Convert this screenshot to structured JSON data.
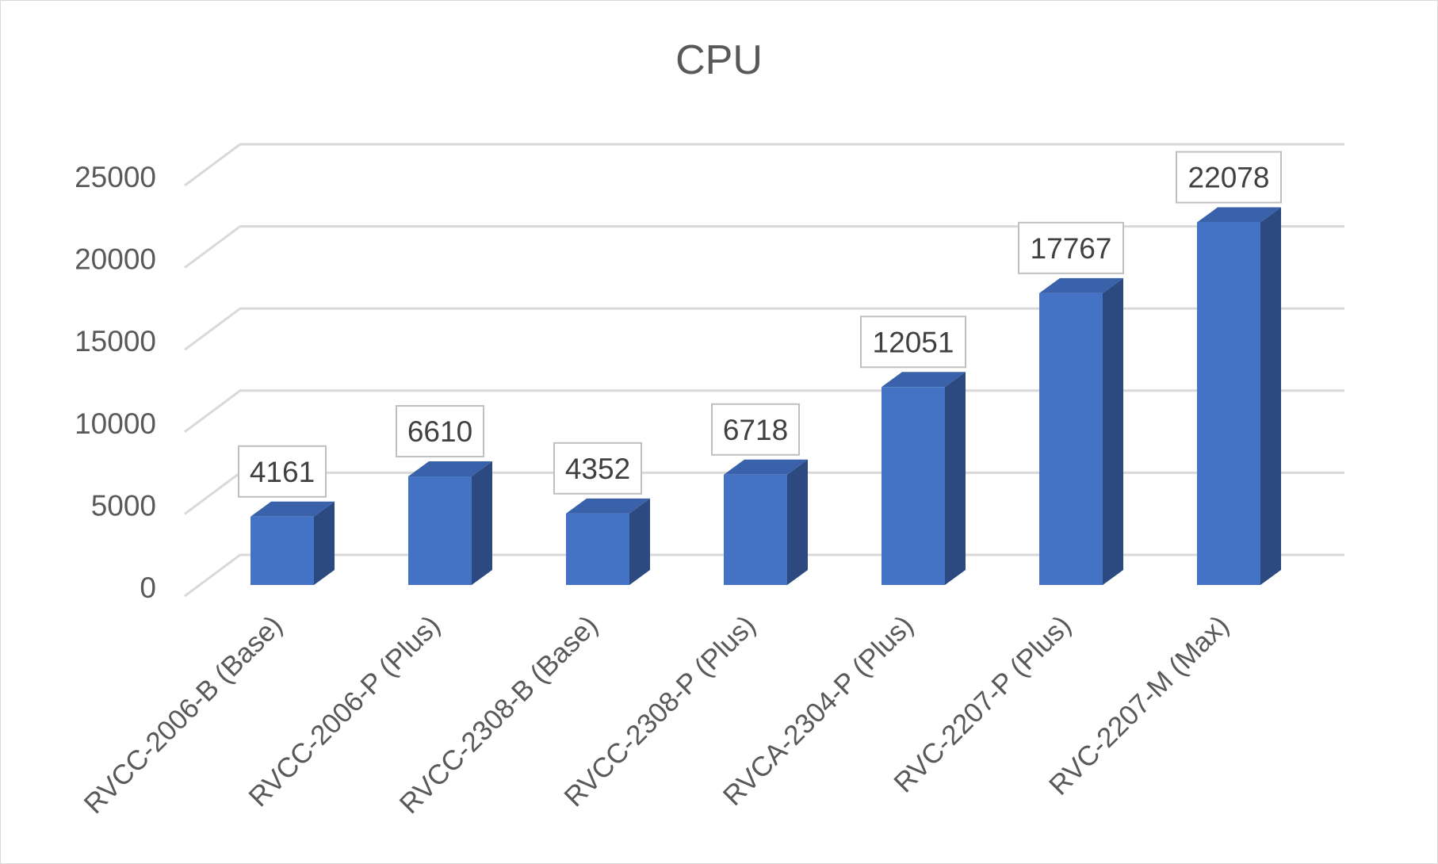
{
  "chart_data": {
    "type": "bar",
    "title": "CPU",
    "categories": [
      "RVCC-2006-B (Base)",
      "RVCC-2006-P (Plus)",
      "RVCC-2308-B (Base)",
      "RVCC-2308-P (Plus)",
      "RVCA-2304-P (Plus)",
      "RVC-2207-P (Plus)",
      "RVC-2207-M (Max)"
    ],
    "values": [
      4161,
      6610,
      4352,
      6718,
      12051,
      17767,
      22078
    ],
    "data_labels": [
      "4161",
      "6610",
      "4352",
      "6718",
      "12051",
      "17767",
      "22078"
    ],
    "ylim": [
      0,
      25000
    ],
    "yticks": [
      0,
      5000,
      10000,
      15000,
      20000,
      25000
    ],
    "ytick_labels": [
      "0",
      "5000",
      "10000",
      "15000",
      "20000",
      "25000"
    ],
    "xlabel": "",
    "ylabel": "",
    "grid": true,
    "legend": "none",
    "style": "3d-column",
    "colors": {
      "bar_front": "#4472c4",
      "bar_side": "#2c4a80",
      "bar_top": "#3a62ab",
      "grid": "#d9d9d9",
      "text": "#595959",
      "label_border": "#bfbfbf"
    }
  }
}
